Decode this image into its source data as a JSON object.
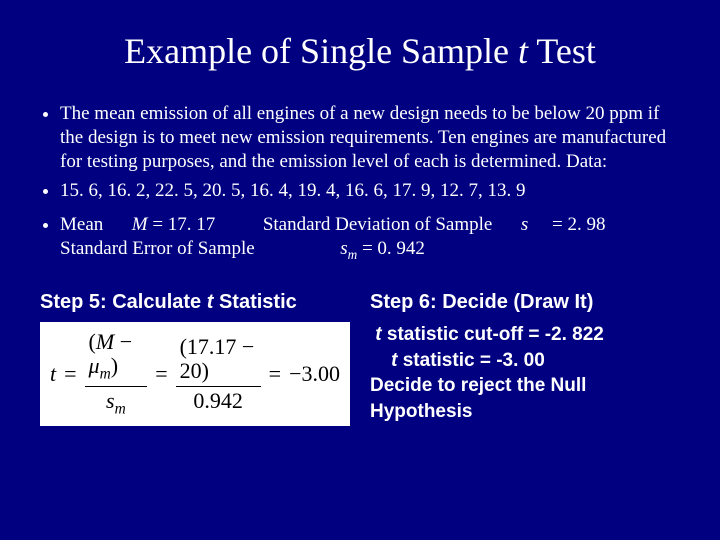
{
  "title_prefix": "Example of Single Sample ",
  "title_italic": "t",
  "title_suffix": " Test",
  "bullet1": "The mean emission of all engines of a new design needs to be below 20 ppm if the design is to meet new emission requirements. Ten engines are manufactured for testing purposes, and the emission level of each is determined. Data:",
  "bullet2": "15. 6, 16. 2, 22. 5, 20. 5, 16. 4, 19. 4, 16. 6, 17. 9, 12. 7, 13. 9",
  "stats": {
    "mean_label": "Mean",
    "mean_sym": "M",
    "mean_eq": " = 17. 17",
    "sd_label": "Standard Deviation of Sample",
    "sd_sym": "s",
    "sd_eq": " = 2. 98",
    "se_label": "Standard Error of Sample",
    "se_sym": "s",
    "se_sub": "m",
    "se_eq": " = 0. 942"
  },
  "step5": {
    "heading_prefix": "Step 5: Calculate ",
    "heading_italic": "t",
    "heading_suffix": " Statistic",
    "formula": {
      "t": "t",
      "eq1": "=",
      "num1_open": "(",
      "num1_M": "M",
      "num1_minus": " − ",
      "num1_mu": "μ",
      "num1_mu_sub": "m",
      "num1_close": ")",
      "den1": "s",
      "den1_sub": "m",
      "eq2": "=",
      "num2": "(17.17 − 20)",
      "den2": "0.942",
      "eq3": "=",
      "result": "−3.00"
    }
  },
  "step6": {
    "heading": "Step 6: Decide (Draw It)",
    "line1_italic": "t",
    "line1_rest": " statistic cut-off  = -2. 822",
    "line2_italic": "t",
    "line2_rest": " statistic = -3. 00",
    "line3": "Decide to reject the Null Hypothesis"
  }
}
